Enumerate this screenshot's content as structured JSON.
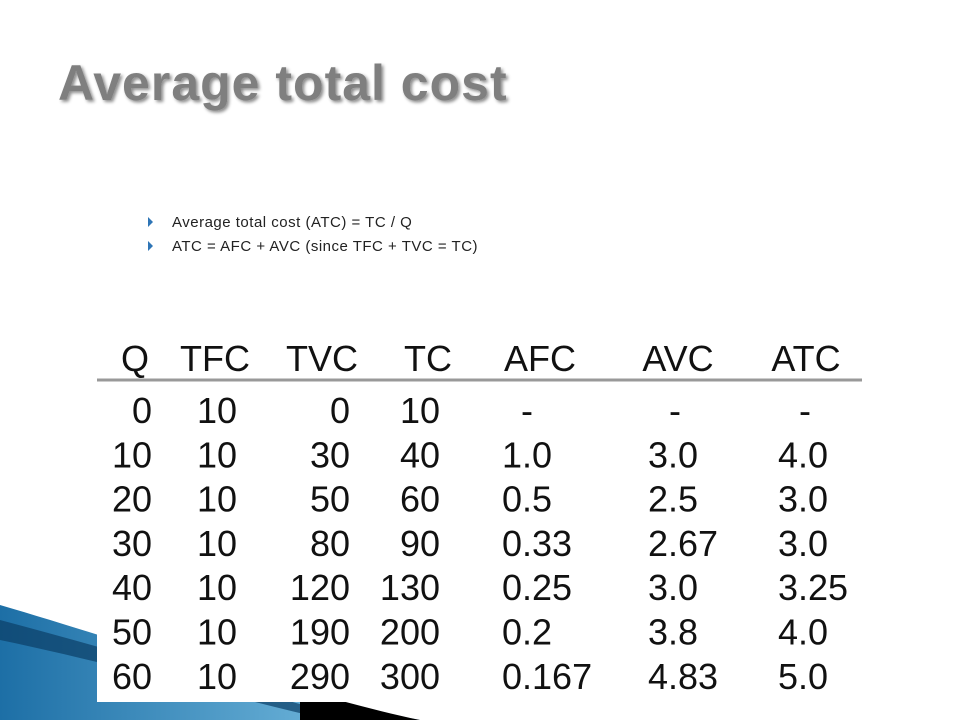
{
  "title": "Average total cost",
  "bullets": [
    "Average total cost (ATC) = TC / Q",
    "ATC = AFC + AVC (since TFC + TVC = TC)"
  ],
  "table": {
    "header": [
      "Q",
      "TFC",
      "TVC",
      "TC",
      "AFC",
      "AVC",
      "ATC"
    ],
    "rows": [
      [
        "0",
        "10",
        "0",
        "10",
        "-",
        "-",
        "-"
      ],
      [
        "10",
        "10",
        "30",
        "40",
        "1.0",
        "3.0",
        "4.0"
      ],
      [
        "20",
        "10",
        "50",
        "60",
        "0.5",
        "2.5",
        "3.0"
      ],
      [
        "30",
        "10",
        "80",
        "90",
        "0.33",
        "2.67",
        "3.0"
      ],
      [
        "40",
        "10",
        "120",
        "130",
        "0.25",
        "3.0",
        "3.25"
      ],
      [
        "50",
        "10",
        "190",
        "200",
        "0.2",
        "3.8",
        "4.0"
      ],
      [
        "60",
        "10",
        "290",
        "300",
        "0.167",
        "4.83",
        "5.0"
      ]
    ]
  }
}
